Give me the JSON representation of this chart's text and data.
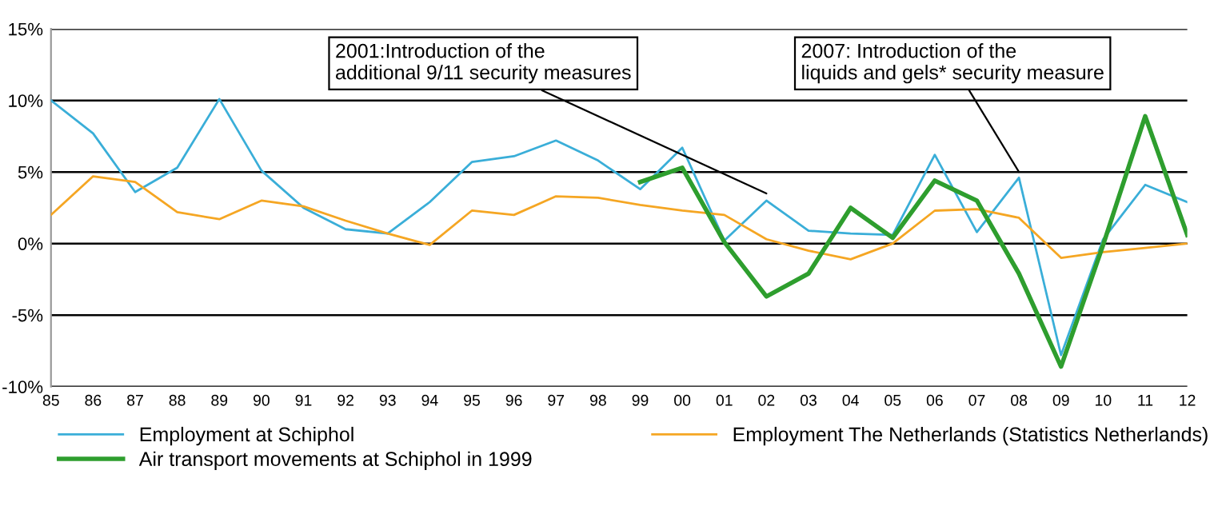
{
  "chart_data": {
    "type": "line",
    "categories": [
      "85",
      "86",
      "87",
      "88",
      "89",
      "90",
      "91",
      "92",
      "93",
      "94",
      "95",
      "96",
      "97",
      "98",
      "99",
      "00",
      "01",
      "02",
      "03",
      "04",
      "05",
      "06",
      "07",
      "08",
      "09",
      "10",
      "11",
      "12"
    ],
    "series": [
      {
        "name": "Employment at Schiphol",
        "color": "#3aaed8",
        "values": [
          10.0,
          7.7,
          3.6,
          5.3,
          10.1,
          5.1,
          2.5,
          1.0,
          0.7,
          2.9,
          5.7,
          6.1,
          7.2,
          5.8,
          3.8,
          6.7,
          0.2,
          3.0,
          0.9,
          0.7,
          0.6,
          6.2,
          0.8,
          4.6,
          -7.8,
          0.3,
          4.1,
          2.9
        ]
      },
      {
        "name": "Employment The Netherlands (Statistics Netherlands)",
        "color": "#f5a623",
        "values": [
          2.0,
          4.7,
          4.3,
          2.2,
          1.7,
          3.0,
          2.6,
          1.6,
          0.7,
          -0.1,
          2.3,
          2.0,
          3.3,
          3.2,
          2.7,
          2.3,
          2.0,
          0.3,
          -0.5,
          -1.1,
          0.0,
          2.3,
          2.4,
          1.8,
          -1.0,
          -0.6,
          -0.3,
          0.0
        ]
      },
      {
        "name": "Air transport movements at Schiphol in 1999",
        "color": "#2e9e2e",
        "values": [
          null,
          null,
          null,
          null,
          null,
          null,
          null,
          null,
          null,
          null,
          null,
          null,
          null,
          null,
          4.3,
          5.3,
          0.1,
          -3.7,
          -2.1,
          2.5,
          0.4,
          4.4,
          3.0,
          -2.1,
          -8.6,
          -0.1,
          8.9,
          0.6
        ]
      }
    ],
    "ylim": [
      -10,
      15
    ],
    "yticks": [
      {
        "value": -10,
        "label": "-10%"
      },
      {
        "value": -5,
        "label": "-5%"
      },
      {
        "value": 0,
        "label": "0%"
      },
      {
        "value": 5,
        "label": "5%"
      },
      {
        "value": 10,
        "label": "10%"
      },
      {
        "value": 15,
        "label": "15%"
      }
    ],
    "grid": "y",
    "legend": "bottom",
    "marker": "none",
    "line_style": "solid",
    "annotations": [
      {
        "text": "2001:Introduction of the\nadditional 9/11 security measures",
        "x": "02",
        "y": 3.5
      },
      {
        "text": "2007: Introduction of the\nliquids and gels* security measure",
        "x": "08",
        "y": 5.0
      }
    ]
  }
}
